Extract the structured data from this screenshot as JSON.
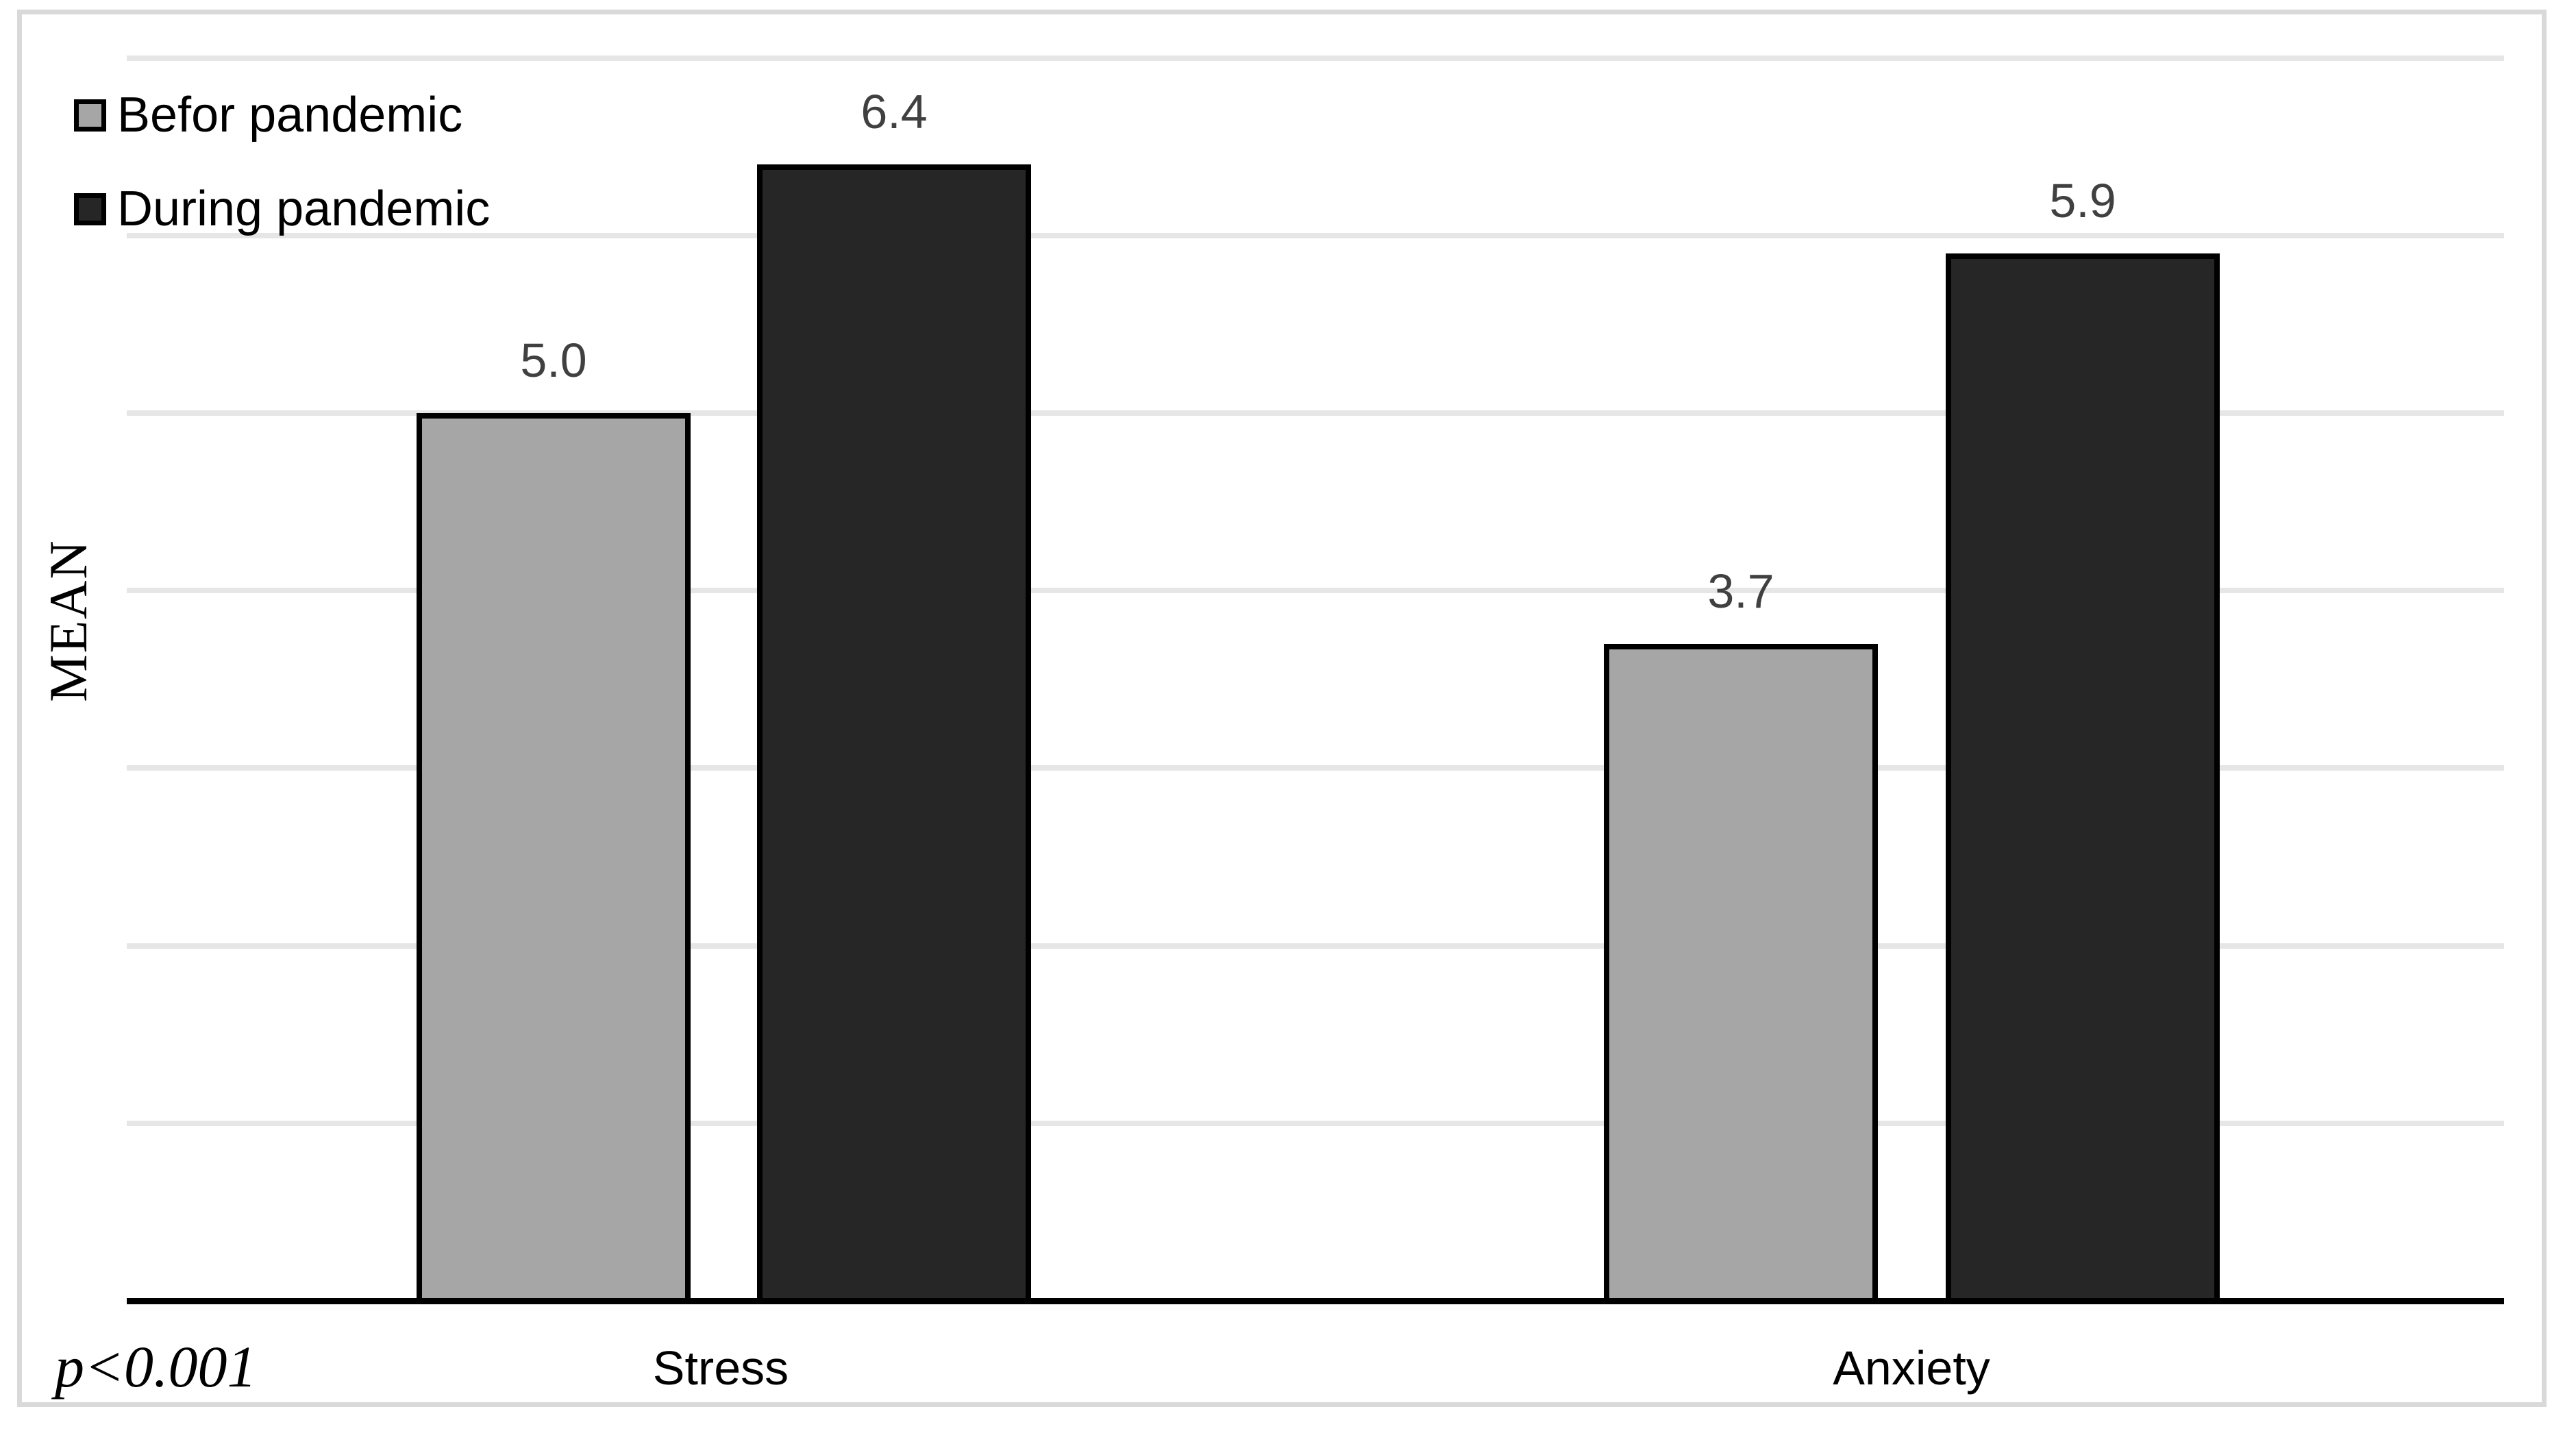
{
  "legend": {
    "items": [
      {
        "label": "Befor pandemic",
        "color": "#a6a6a6"
      },
      {
        "label": "During pandemic",
        "color": "#262626"
      }
    ]
  },
  "annotation": {
    "p_value": "p<0.001"
  },
  "chart_data": {
    "type": "bar",
    "title": "",
    "categories": [
      "Stress",
      "Anxiety"
    ],
    "series": [
      {
        "name": "Befor pandemic",
        "color": "#a6a6a6",
        "values": [
          5.0,
          3.7
        ],
        "labels": [
          "5.0",
          "3.7"
        ]
      },
      {
        "name": "During pandemic",
        "color": "#262626",
        "values": [
          6.4,
          5.9
        ],
        "labels": [
          "6.4",
          "5.9"
        ]
      }
    ],
    "xlabel": "",
    "ylabel": "MEAN",
    "ylim": [
      0,
      7.3
    ],
    "gridlines": [
      1,
      2,
      3,
      4,
      5,
      6,
      7
    ],
    "grid": true,
    "y_ticks_shown": false,
    "legend_position": "top-left",
    "annotations": [
      "p<0.001"
    ],
    "axis_color": "#000000",
    "gridline_color": "#e6e6e6",
    "value_label_color": "#404040",
    "frame_border_color": "#d9d9d9"
  }
}
